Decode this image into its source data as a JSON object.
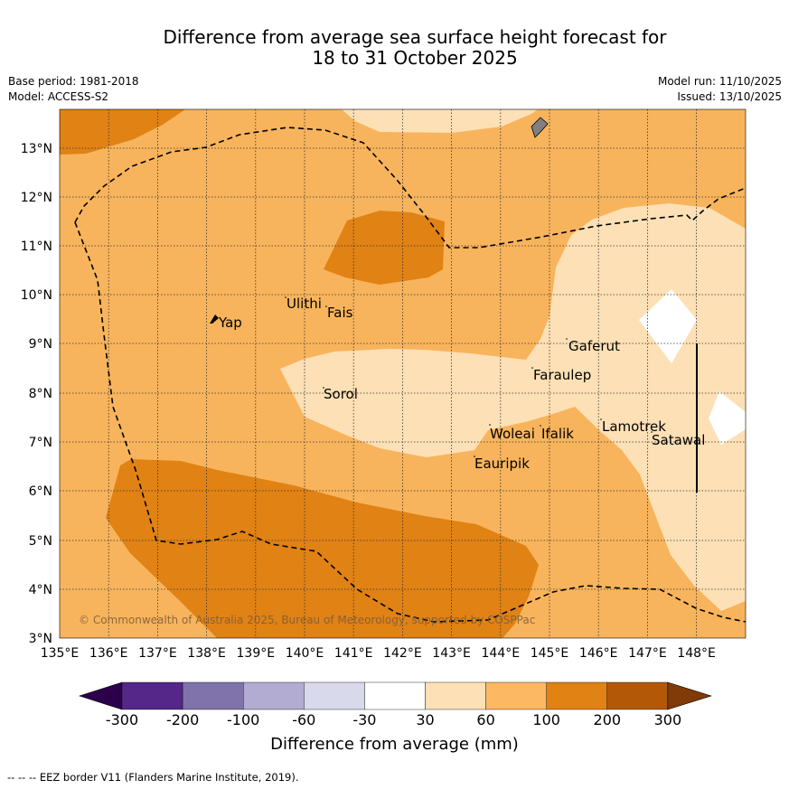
{
  "title_line1": "Difference from average sea surface height forecast for",
  "title_line2": "18 to 31 October 2025",
  "meta": {
    "base_period": "Base period: 1981-2018",
    "model": "Model: ACCESS-S2",
    "model_run": "Model run: 11/10/2025",
    "issued": "Issued: 13/10/2025"
  },
  "map": {
    "lon_labels": [
      "135°E",
      "136°E",
      "137°E",
      "138°E",
      "139°E",
      "140°E",
      "141°E",
      "142°E",
      "143°E",
      "144°E",
      "145°E",
      "146°E",
      "147°E",
      "148°E"
    ],
    "lat_labels": [
      "13°N",
      "12°N",
      "11°N",
      "10°N",
      "9°N",
      "8°N",
      "7°N",
      "6°N",
      "5°N",
      "4°N",
      "3°N"
    ],
    "places": [
      "Yap",
      "Ulithi",
      "Fais",
      "Gaferut",
      "Faraulep",
      "Sorol",
      "Lamotrek",
      "Woleai",
      "Ifalik",
      "Satawal",
      "Eauripik"
    ],
    "copyright": "© Commonwealth of Australia 2025, Bureau of Meteorology, supported by COSPPac",
    "colors": {
      "c30_60": "#fde0b5",
      "c60_100": "#f8b45c",
      "c100_200": "#e08214",
      "c200_300": "#b35806",
      "c_minus30_30": "#ffffff"
    }
  },
  "colorbar": {
    "ticks": [
      "-300",
      "-200",
      "-100",
      "-60",
      "-30",
      "30",
      "60",
      "100",
      "200",
      "300"
    ],
    "title": "Difference from average (mm)",
    "colors": [
      "#2d004b",
      "#542788",
      "#8073ac",
      "#b2abd2",
      "#d8daeb",
      "#ffffff",
      "#fee0b6",
      "#fdb863",
      "#e08214",
      "#b35806",
      "#7f3b08"
    ]
  },
  "footnote": "--  --  -- EEZ border V11 (Flanders Marine Institute, 2019)."
}
